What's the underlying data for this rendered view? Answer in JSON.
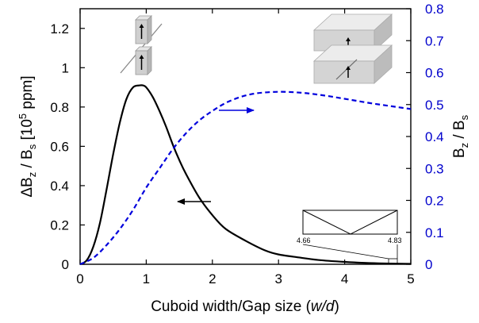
{
  "chart_data": {
    "type": "line",
    "xlabel_main": "Cuboid width/Gap size (",
    "xlabel_var": "w/d",
    "xlabel_end": ")",
    "ylabel_left": "ΔBz / Bs [10^5 ppm]",
    "ylabel_right": "Bz / Bs",
    "xlim": [
      0,
      5
    ],
    "ylim_left": [
      0,
      1.3
    ],
    "ylim_right": [
      0,
      0.8
    ],
    "x_ticks": [
      "0",
      "1",
      "2",
      "3",
      "4",
      "5"
    ],
    "y_ticks_left": [
      "0",
      "0.2",
      "0.4",
      "0.6",
      "0.8",
      "1",
      "1.2"
    ],
    "y_ticks_right": [
      "0",
      "0.1",
      "0.2",
      "0.3",
      "0.4",
      "0.5",
      "0.6",
      "0.7",
      "0.8"
    ],
    "series": [
      {
        "axis": "left",
        "style": "solid",
        "color": "#000000",
        "x": [
          0,
          0.1,
          0.2,
          0.3,
          0.4,
          0.5,
          0.6,
          0.7,
          0.8,
          0.9,
          0.95,
          1.0,
          1.1,
          1.2,
          1.3,
          1.4,
          1.5,
          1.6,
          1.8,
          2.0,
          2.2,
          2.5,
          2.8,
          3.0,
          3.3,
          3.6,
          4.0,
          4.3,
          4.6,
          5.0
        ],
        "y": [
          0,
          0.02,
          0.09,
          0.21,
          0.38,
          0.56,
          0.72,
          0.84,
          0.9,
          0.91,
          0.91,
          0.9,
          0.85,
          0.78,
          0.7,
          0.61,
          0.53,
          0.46,
          0.34,
          0.25,
          0.18,
          0.12,
          0.07,
          0.05,
          0.035,
          0.022,
          0.012,
          0.007,
          0.004,
          0.002
        ]
      },
      {
        "axis": "right",
        "style": "dashed",
        "color": "#0000dd",
        "x": [
          0,
          0.2,
          0.4,
          0.6,
          0.8,
          1.0,
          1.2,
          1.4,
          1.6,
          1.8,
          2.0,
          2.2,
          2.4,
          2.6,
          2.8,
          3.0,
          3.2,
          3.4,
          3.6,
          3.8,
          4.0,
          4.2,
          4.4,
          4.6,
          4.8,
          5.0
        ],
        "y": [
          0,
          0.02,
          0.06,
          0.11,
          0.17,
          0.24,
          0.3,
          0.36,
          0.41,
          0.45,
          0.48,
          0.505,
          0.522,
          0.533,
          0.538,
          0.54,
          0.539,
          0.536,
          0.531,
          0.525,
          0.518,
          0.511,
          0.504,
          0.498,
          0.492,
          0.486
        ]
      }
    ],
    "inset": {
      "x_ticks": [
        "4.66",
        "4.83"
      ]
    }
  }
}
